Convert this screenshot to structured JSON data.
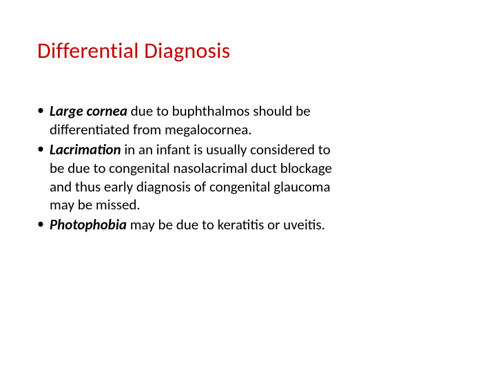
{
  "slide": {
    "title_color": "#c00000",
    "body_color": "#000000",
    "background": "#ffffff",
    "title": "Differential Diagnosis",
    "bullets": [
      {
        "lead": "Large cornea",
        "rest": " due to buphthalmos should be\n differentiated from megalocornea."
      },
      {
        "lead": "Lacrimation",
        "rest": " in an infant is usually considered to\nbe due to congenital nasolacrimal duct blockage\nand thus early diagnosis of congenital glaucoma\nmay be missed."
      },
      {
        "lead": "Photophobia",
        "rest": " may be due to keratitis or uveitis."
      }
    ]
  }
}
